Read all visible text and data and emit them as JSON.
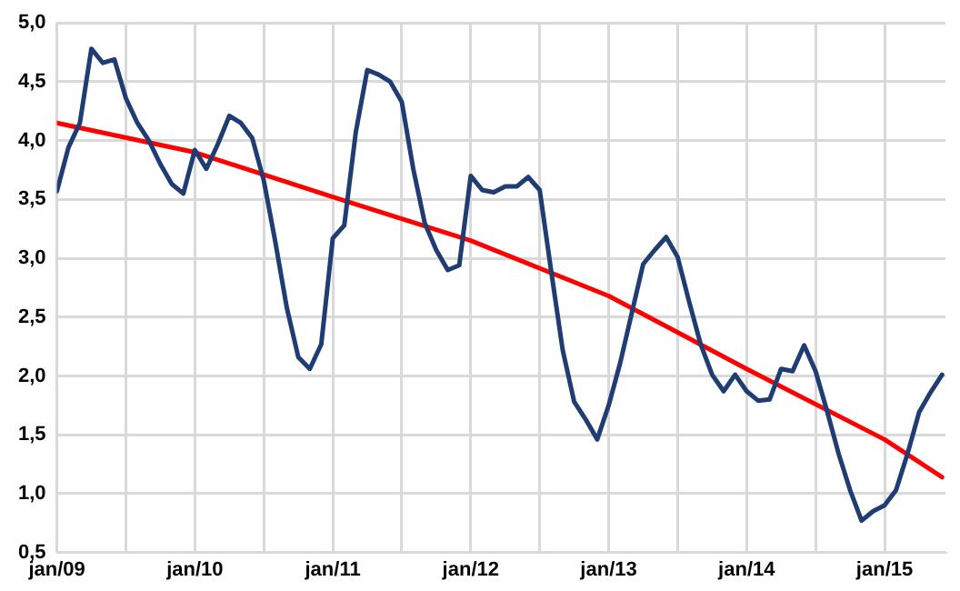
{
  "chart_data": {
    "type": "line",
    "marker": "none",
    "line_style": "solid",
    "grid": true,
    "legend": false,
    "xlim": [
      "2009-01",
      "2015-06-10"
    ],
    "xticks": [
      {
        "value": "2009-01",
        "label": "jan/09"
      },
      {
        "value": "2009-07",
        "label": null
      },
      {
        "value": "2010-01",
        "label": "jan/10"
      },
      {
        "value": "2010-07",
        "label": null
      },
      {
        "value": "2011-01",
        "label": "jan/11"
      },
      {
        "value": "2011-07",
        "label": null
      },
      {
        "value": "2012-01",
        "label": "jan/12"
      },
      {
        "value": "2012-07",
        "label": null
      },
      {
        "value": "2013-01",
        "label": "jan/13"
      },
      {
        "value": "2013-07",
        "label": null
      },
      {
        "value": "2014-01",
        "label": "jan/14"
      },
      {
        "value": "2014-07",
        "label": null
      },
      {
        "value": "2015-01",
        "label": "jan/15"
      }
    ],
    "ylim": [
      0.5,
      5.0
    ],
    "yticks": [
      {
        "value": 0.5,
        "label": "0,5"
      },
      {
        "value": 1.0,
        "label": "1,0"
      },
      {
        "value": 1.5,
        "label": "1,5"
      },
      {
        "value": 2.0,
        "label": "2,0"
      },
      {
        "value": 2.5,
        "label": "2,5"
      },
      {
        "value": 3.0,
        "label": "3,0"
      },
      {
        "value": 3.5,
        "label": "3,5"
      },
      {
        "value": 4.0,
        "label": "4,0"
      },
      {
        "value": 4.5,
        "label": "4,5"
      },
      {
        "value": 5.0,
        "label": "5,0"
      }
    ],
    "series": [
      {
        "color": "#1f3d73",
        "x": [
          "2009-01",
          "2009-02",
          "2009-03",
          "2009-04",
          "2009-05",
          "2009-06",
          "2009-07",
          "2009-08",
          "2009-09",
          "2009-10",
          "2009-11",
          "2009-12",
          "2010-01",
          "2010-02",
          "2010-03",
          "2010-04",
          "2010-05",
          "2010-06",
          "2010-07",
          "2010-08",
          "2010-09",
          "2010-10",
          "2010-11",
          "2010-12",
          "2011-01",
          "2011-02",
          "2011-03",
          "2011-04",
          "2011-05",
          "2011-06",
          "2011-07",
          "2011-08",
          "2011-09",
          "2011-10",
          "2011-11",
          "2011-12",
          "2012-01",
          "2012-02",
          "2012-03",
          "2012-04",
          "2012-05",
          "2012-06",
          "2012-07",
          "2012-08",
          "2012-09",
          "2012-10",
          "2012-11",
          "2012-12",
          "2013-01",
          "2013-02",
          "2013-03",
          "2013-04",
          "2013-05",
          "2013-06",
          "2013-07",
          "2013-08",
          "2013-09",
          "2013-10",
          "2013-11",
          "2013-12",
          "2014-01",
          "2014-02",
          "2014-03",
          "2014-04",
          "2014-05",
          "2014-06",
          "2014-07",
          "2014-08",
          "2014-09",
          "2014-10",
          "2014-11",
          "2014-12",
          "2015-01",
          "2015-02",
          "2015-03",
          "2015-04",
          "2015-05",
          "2015-06"
        ],
        "values": [
          3.57,
          3.94,
          4.15,
          4.78,
          4.66,
          4.69,
          4.36,
          4.15,
          4.0,
          3.8,
          3.63,
          3.55,
          3.92,
          3.76,
          3.97,
          4.21,
          4.15,
          4.02,
          3.66,
          3.14,
          2.58,
          2.16,
          2.06,
          2.27,
          3.17,
          3.28,
          4.07,
          4.6,
          4.56,
          4.5,
          4.33,
          3.76,
          3.3,
          3.07,
          2.9,
          2.94,
          3.7,
          3.58,
          3.56,
          3.61,
          3.61,
          3.69,
          3.58,
          2.89,
          2.22,
          1.78,
          1.63,
          1.46,
          1.75,
          2.11,
          2.53,
          2.95,
          3.07,
          3.18,
          3.01,
          2.63,
          2.27,
          2.01,
          1.87,
          2.01,
          1.87,
          1.79,
          1.8,
          2.06,
          2.04,
          2.26,
          2.04,
          1.7,
          1.34,
          1.03,
          0.77,
          0.85,
          0.9,
          1.03,
          1.34,
          1.69,
          1.86,
          2.01
        ]
      },
      {
        "color": "#ff0000",
        "x": [
          "2009-01",
          "2010-01",
          "2011-01",
          "2012-01",
          "2013-01",
          "2014-01",
          "2015-01",
          "2015-06"
        ],
        "values": [
          4.15,
          3.9,
          3.52,
          3.15,
          2.68,
          2.06,
          1.46,
          1.14
        ]
      }
    ]
  }
}
